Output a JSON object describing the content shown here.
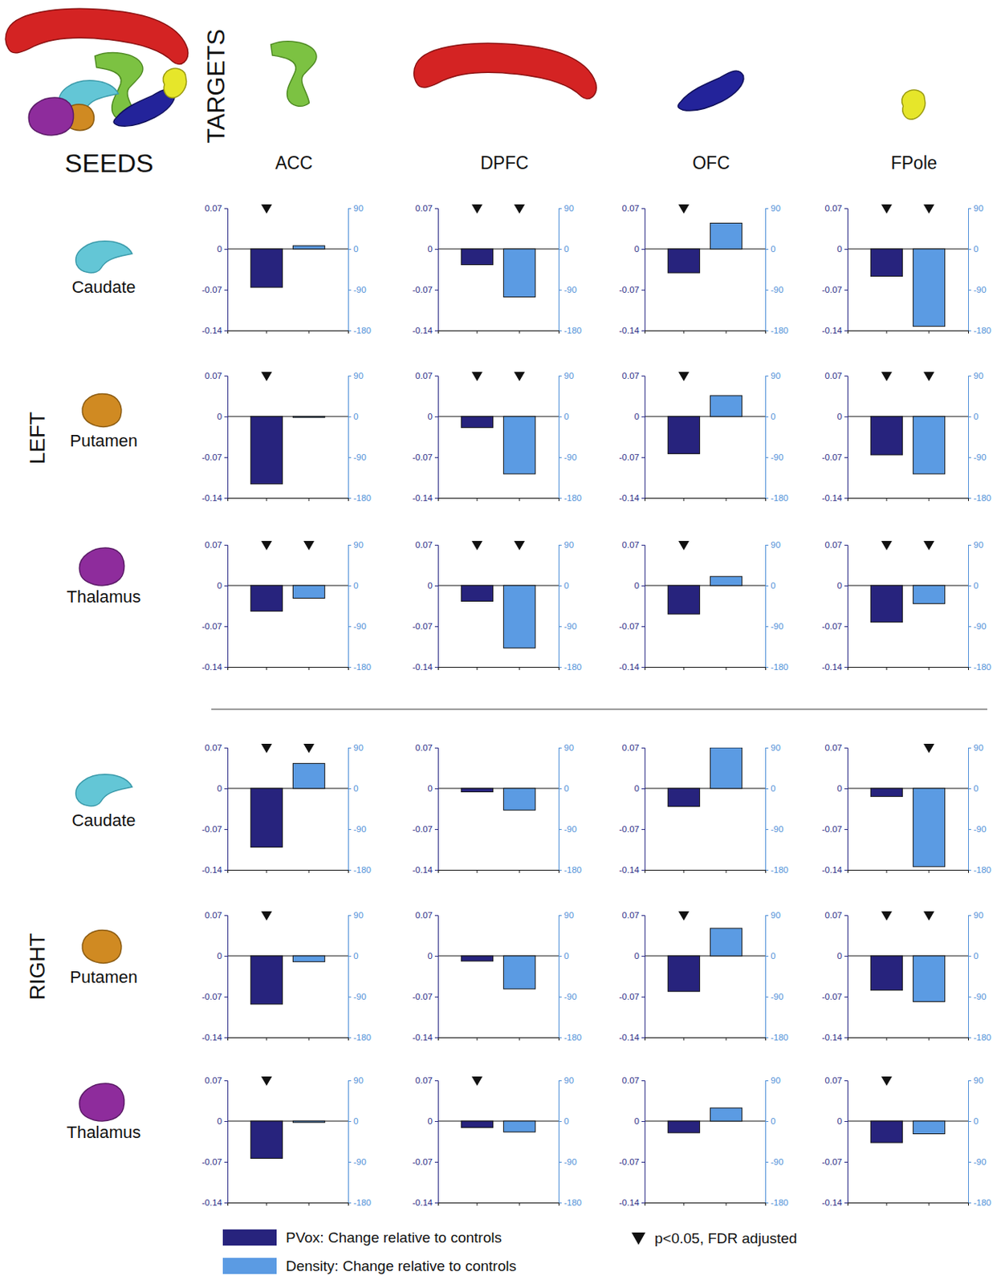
{
  "figure": {
    "seeds_label": "SEEDS",
    "targets_label": "TARGETS",
    "targets": [
      "ACC",
      "DPFC",
      "OFC",
      "FPole"
    ],
    "hemispheres": [
      "LEFT",
      "RIGHT"
    ],
    "seeds": [
      "Caudate",
      "Putamen",
      "Thalamus"
    ],
    "legend": [
      {
        "name": "PVox: Change relative to controls",
        "color": "#27237d"
      },
      {
        "name": "Density: Change relative to controls",
        "color": "#5b9be3"
      }
    ],
    "significance_label": "p<0.05, FDR adjusted"
  },
  "chart_data": [
    {
      "type": "bar",
      "categories": [
        null,
        null
      ],
      "ylim": [
        -0.14,
        0.07
      ],
      "yticks": [
        -0.14,
        -0.07,
        0,
        0.07
      ],
      "y2lim": [
        -180,
        90
      ],
      "y2ticks": [
        -180,
        -90,
        0,
        90
      ],
      "series": [
        {
          "color": "#27237d",
          "values": [
            -0.066,
            null
          ]
        },
        {
          "color": "#5b9be3",
          "axis": "y2",
          "values": [
            null,
            7
          ]
        }
      ],
      "significant": [
        true,
        false
      ]
    },
    {
      "type": "bar",
      "categories": [
        null,
        null
      ],
      "ylim": [
        -0.14,
        0.07
      ],
      "yticks": [
        -0.14,
        -0.07,
        0,
        0.07
      ],
      "y2lim": [
        -180,
        90
      ],
      "y2ticks": [
        -180,
        -90,
        0,
        90
      ],
      "series": [
        {
          "color": "#27237d",
          "values": [
            -0.027,
            null
          ]
        },
        {
          "color": "#5b9be3",
          "axis": "y2",
          "values": [
            null,
            -106
          ]
        }
      ],
      "significant": [
        true,
        true
      ]
    },
    {
      "type": "bar",
      "categories": [
        null,
        null
      ],
      "ylim": [
        -0.14,
        0.07
      ],
      "yticks": [
        -0.14,
        -0.07,
        0,
        0.07
      ],
      "y2lim": [
        -180,
        90
      ],
      "y2ticks": [
        -180,
        -90,
        0,
        90
      ],
      "series": [
        {
          "color": "#27237d",
          "values": [
            -0.041,
            null
          ]
        },
        {
          "color": "#5b9be3",
          "axis": "y2",
          "values": [
            null,
            57
          ]
        }
      ],
      "significant": [
        true,
        false
      ]
    },
    {
      "type": "bar",
      "categories": [
        null,
        null
      ],
      "ylim": [
        -0.14,
        0.07
      ],
      "yticks": [
        -0.14,
        -0.07,
        0,
        0.07
      ],
      "y2lim": [
        -180,
        90
      ],
      "y2ticks": [
        -180,
        -90,
        0,
        90
      ],
      "series": [
        {
          "color": "#27237d",
          "values": [
            -0.047,
            null
          ]
        },
        {
          "color": "#5b9be3",
          "axis": "y2",
          "values": [
            null,
            -171
          ]
        }
      ],
      "significant": [
        true,
        true
      ]
    },
    {
      "type": "bar",
      "categories": [
        null,
        null
      ],
      "ylim": [
        -0.14,
        0.07
      ],
      "yticks": [
        -0.14,
        -0.07,
        0,
        0.07
      ],
      "y2lim": [
        -180,
        90
      ],
      "y2ticks": [
        -180,
        -90,
        0,
        90
      ],
      "series": [
        {
          "color": "#27237d",
          "values": [
            -0.116,
            null
          ]
        },
        {
          "color": "#5b9be3",
          "axis": "y2",
          "values": [
            null,
            -2
          ]
        }
      ],
      "significant": [
        true,
        false
      ]
    },
    {
      "type": "bar",
      "categories": [
        null,
        null
      ],
      "ylim": [
        -0.14,
        0.07
      ],
      "yticks": [
        -0.14,
        -0.07,
        0,
        0.07
      ],
      "y2lim": [
        -180,
        90
      ],
      "y2ticks": [
        -180,
        -90,
        0,
        90
      ],
      "series": [
        {
          "color": "#27237d",
          "values": [
            -0.019,
            null
          ]
        },
        {
          "color": "#5b9be3",
          "axis": "y2",
          "values": [
            null,
            -127
          ]
        }
      ],
      "significant": [
        true,
        true
      ]
    },
    {
      "type": "bar",
      "categories": [
        null,
        null
      ],
      "ylim": [
        -0.14,
        0.07
      ],
      "yticks": [
        -0.14,
        -0.07,
        0,
        0.07
      ],
      "y2lim": [
        -180,
        90
      ],
      "y2ticks": [
        -180,
        -90,
        0,
        90
      ],
      "series": [
        {
          "color": "#27237d",
          "values": [
            -0.064,
            null
          ]
        },
        {
          "color": "#5b9be3",
          "axis": "y2",
          "values": [
            null,
            46
          ]
        }
      ],
      "significant": [
        true,
        false
      ]
    },
    {
      "type": "bar",
      "categories": [
        null,
        null
      ],
      "ylim": [
        -0.14,
        0.07
      ],
      "yticks": [
        -0.14,
        -0.07,
        0,
        0.07
      ],
      "y2lim": [
        -180,
        90
      ],
      "y2ticks": [
        -180,
        -90,
        0,
        90
      ],
      "series": [
        {
          "color": "#27237d",
          "values": [
            -0.066,
            null
          ]
        },
        {
          "color": "#5b9be3",
          "axis": "y2",
          "values": [
            null,
            -127
          ]
        }
      ],
      "significant": [
        true,
        true
      ]
    },
    {
      "type": "bar",
      "categories": [
        null,
        null
      ],
      "ylim": [
        -0.14,
        0.07
      ],
      "yticks": [
        -0.14,
        -0.07,
        0,
        0.07
      ],
      "y2lim": [
        -180,
        90
      ],
      "y2ticks": [
        -180,
        -90,
        0,
        90
      ],
      "series": [
        {
          "color": "#27237d",
          "values": [
            -0.044,
            null
          ]
        },
        {
          "color": "#5b9be3",
          "axis": "y2",
          "values": [
            null,
            -28
          ]
        }
      ],
      "significant": [
        true,
        true
      ]
    },
    {
      "type": "bar",
      "categories": [
        null,
        null
      ],
      "ylim": [
        -0.14,
        0.07
      ],
      "yticks": [
        -0.14,
        -0.07,
        0,
        0.07
      ],
      "y2lim": [
        -180,
        90
      ],
      "y2ticks": [
        -180,
        -90,
        0,
        90
      ],
      "series": [
        {
          "color": "#27237d",
          "values": [
            -0.027,
            null
          ]
        },
        {
          "color": "#5b9be3",
          "axis": "y2",
          "values": [
            null,
            -138
          ]
        }
      ],
      "significant": [
        true,
        true
      ]
    },
    {
      "type": "bar",
      "categories": [
        null,
        null
      ],
      "ylim": [
        -0.14,
        0.07
      ],
      "yticks": [
        -0.14,
        -0.07,
        0,
        0.07
      ],
      "y2lim": [
        -180,
        90
      ],
      "y2ticks": [
        -180,
        -90,
        0,
        90
      ],
      "series": [
        {
          "color": "#27237d",
          "values": [
            -0.049,
            null
          ]
        },
        {
          "color": "#5b9be3",
          "axis": "y2",
          "values": [
            null,
            20
          ]
        }
      ],
      "significant": [
        true,
        false
      ]
    },
    {
      "type": "bar",
      "categories": [
        null,
        null
      ],
      "ylim": [
        -0.14,
        0.07
      ],
      "yticks": [
        -0.14,
        -0.07,
        0,
        0.07
      ],
      "y2lim": [
        -180,
        90
      ],
      "y2ticks": [
        -180,
        -90,
        0,
        90
      ],
      "series": [
        {
          "color": "#27237d",
          "values": [
            -0.063,
            null
          ]
        },
        {
          "color": "#5b9be3",
          "axis": "y2",
          "values": [
            null,
            -40
          ]
        }
      ],
      "significant": [
        true,
        true
      ]
    },
    {
      "type": "bar",
      "categories": [
        null,
        null
      ],
      "ylim": [
        -0.14,
        0.07
      ],
      "yticks": [
        -0.14,
        -0.07,
        0,
        0.07
      ],
      "y2lim": [
        -180,
        90
      ],
      "y2ticks": [
        -180,
        -90,
        0,
        90
      ],
      "series": [
        {
          "color": "#27237d",
          "values": [
            -0.101,
            null
          ]
        },
        {
          "color": "#5b9be3",
          "axis": "y2",
          "values": [
            null,
            55
          ]
        }
      ],
      "significant": [
        true,
        true
      ]
    },
    {
      "type": "bar",
      "categories": [
        null,
        null
      ],
      "ylim": [
        -0.14,
        0.07
      ],
      "yticks": [
        -0.14,
        -0.07,
        0,
        0.07
      ],
      "y2lim": [
        -180,
        90
      ],
      "y2ticks": [
        -180,
        -90,
        0,
        90
      ],
      "series": [
        {
          "color": "#27237d",
          "values": [
            -0.006,
            null
          ]
        },
        {
          "color": "#5b9be3",
          "axis": "y2",
          "values": [
            null,
            -48
          ]
        }
      ],
      "significant": [
        false,
        false
      ]
    },
    {
      "type": "bar",
      "categories": [
        null,
        null
      ],
      "ylim": [
        -0.14,
        0.07
      ],
      "yticks": [
        -0.14,
        -0.07,
        0,
        0.07
      ],
      "y2lim": [
        -180,
        90
      ],
      "y2ticks": [
        -180,
        -90,
        0,
        90
      ],
      "series": [
        {
          "color": "#27237d",
          "values": [
            -0.031,
            null
          ]
        },
        {
          "color": "#5b9be3",
          "axis": "y2",
          "values": [
            null,
            90
          ]
        }
      ],
      "significant": [
        false,
        false
      ]
    },
    {
      "type": "bar",
      "categories": [
        null,
        null
      ],
      "ylim": [
        -0.14,
        0.07
      ],
      "yticks": [
        -0.14,
        -0.07,
        0,
        0.07
      ],
      "y2lim": [
        -180,
        90
      ],
      "y2ticks": [
        -180,
        -90,
        0,
        90
      ],
      "series": [
        {
          "color": "#27237d",
          "values": [
            -0.014,
            null
          ]
        },
        {
          "color": "#5b9be3",
          "axis": "y2",
          "values": [
            null,
            -173
          ]
        }
      ],
      "significant": [
        false,
        true
      ]
    },
    {
      "type": "bar",
      "categories": [
        null,
        null
      ],
      "ylim": [
        -0.14,
        0.07
      ],
      "yticks": [
        -0.14,
        -0.07,
        0,
        0.07
      ],
      "y2lim": [
        -180,
        90
      ],
      "y2ticks": [
        -180,
        -90,
        0,
        90
      ],
      "series": [
        {
          "color": "#27237d",
          "values": [
            -0.083,
            null
          ]
        },
        {
          "color": "#5b9be3",
          "axis": "y2",
          "values": [
            null,
            -13
          ]
        }
      ],
      "significant": [
        true,
        false
      ]
    },
    {
      "type": "bar",
      "categories": [
        null,
        null
      ],
      "ylim": [
        -0.14,
        0.07
      ],
      "yticks": [
        -0.14,
        -0.07,
        0,
        0.07
      ],
      "y2lim": [
        -180,
        90
      ],
      "y2ticks": [
        -180,
        -90,
        0,
        90
      ],
      "series": [
        {
          "color": "#27237d",
          "values": [
            -0.009,
            null
          ]
        },
        {
          "color": "#5b9be3",
          "axis": "y2",
          "values": [
            null,
            -73
          ]
        }
      ],
      "significant": [
        false,
        false
      ]
    },
    {
      "type": "bar",
      "categories": [
        null,
        null
      ],
      "ylim": [
        -0.14,
        0.07
      ],
      "yticks": [
        -0.14,
        -0.07,
        0,
        0.07
      ],
      "y2lim": [
        -180,
        90
      ],
      "y2ticks": [
        -180,
        -90,
        0,
        90
      ],
      "series": [
        {
          "color": "#27237d",
          "values": [
            -0.061,
            null
          ]
        },
        {
          "color": "#5b9be3",
          "axis": "y2",
          "values": [
            null,
            61
          ]
        }
      ],
      "significant": [
        true,
        false
      ]
    },
    {
      "type": "bar",
      "categories": [
        null,
        null
      ],
      "ylim": [
        -0.14,
        0.07
      ],
      "yticks": [
        -0.14,
        -0.07,
        0,
        0.07
      ],
      "y2lim": [
        -180,
        90
      ],
      "y2ticks": [
        -180,
        -90,
        0,
        90
      ],
      "series": [
        {
          "color": "#27237d",
          "values": [
            -0.059,
            null
          ]
        },
        {
          "color": "#5b9be3",
          "axis": "y2",
          "values": [
            null,
            -101
          ]
        }
      ],
      "significant": [
        true,
        true
      ]
    },
    {
      "type": "bar",
      "categories": [
        null,
        null
      ],
      "ylim": [
        -0.14,
        0.07
      ],
      "yticks": [
        -0.14,
        -0.07,
        0,
        0.07
      ],
      "y2lim": [
        -180,
        90
      ],
      "y2ticks": [
        -180,
        -90,
        0,
        90
      ],
      "series": [
        {
          "color": "#27237d",
          "values": [
            -0.064,
            null
          ]
        },
        {
          "color": "#5b9be3",
          "axis": "y2",
          "values": [
            null,
            -3
          ]
        }
      ],
      "significant": [
        true,
        false
      ]
    },
    {
      "type": "bar",
      "categories": [
        null,
        null
      ],
      "ylim": [
        -0.14,
        0.07
      ],
      "yticks": [
        -0.14,
        -0.07,
        0,
        0.07
      ],
      "y2lim": [
        -180,
        90
      ],
      "y2ticks": [
        -180,
        -90,
        0,
        90
      ],
      "series": [
        {
          "color": "#27237d",
          "values": [
            -0.011,
            null
          ]
        },
        {
          "color": "#5b9be3",
          "axis": "y2",
          "values": [
            null,
            -24
          ]
        }
      ],
      "significant": [
        true,
        false
      ]
    },
    {
      "type": "bar",
      "categories": [
        null,
        null
      ],
      "ylim": [
        -0.14,
        0.07
      ],
      "yticks": [
        -0.14,
        -0.07,
        0,
        0.07
      ],
      "y2lim": [
        -180,
        90
      ],
      "y2ticks": [
        -180,
        -90,
        0,
        90
      ],
      "series": [
        {
          "color": "#27237d",
          "values": [
            -0.02,
            null
          ]
        },
        {
          "color": "#5b9be3",
          "axis": "y2",
          "values": [
            null,
            29
          ]
        }
      ],
      "significant": [
        false,
        false
      ]
    },
    {
      "type": "bar",
      "categories": [
        null,
        null
      ],
      "ylim": [
        -0.14,
        0.07
      ],
      "yticks": [
        -0.14,
        -0.07,
        0,
        0.07
      ],
      "y2lim": [
        -180,
        90
      ],
      "y2ticks": [
        -180,
        -90,
        0,
        90
      ],
      "series": [
        {
          "color": "#27237d",
          "values": [
            -0.037,
            null
          ]
        },
        {
          "color": "#5b9be3",
          "axis": "y2",
          "values": [
            null,
            -28
          ]
        }
      ],
      "significant": [
        true,
        false
      ]
    }
  ]
}
